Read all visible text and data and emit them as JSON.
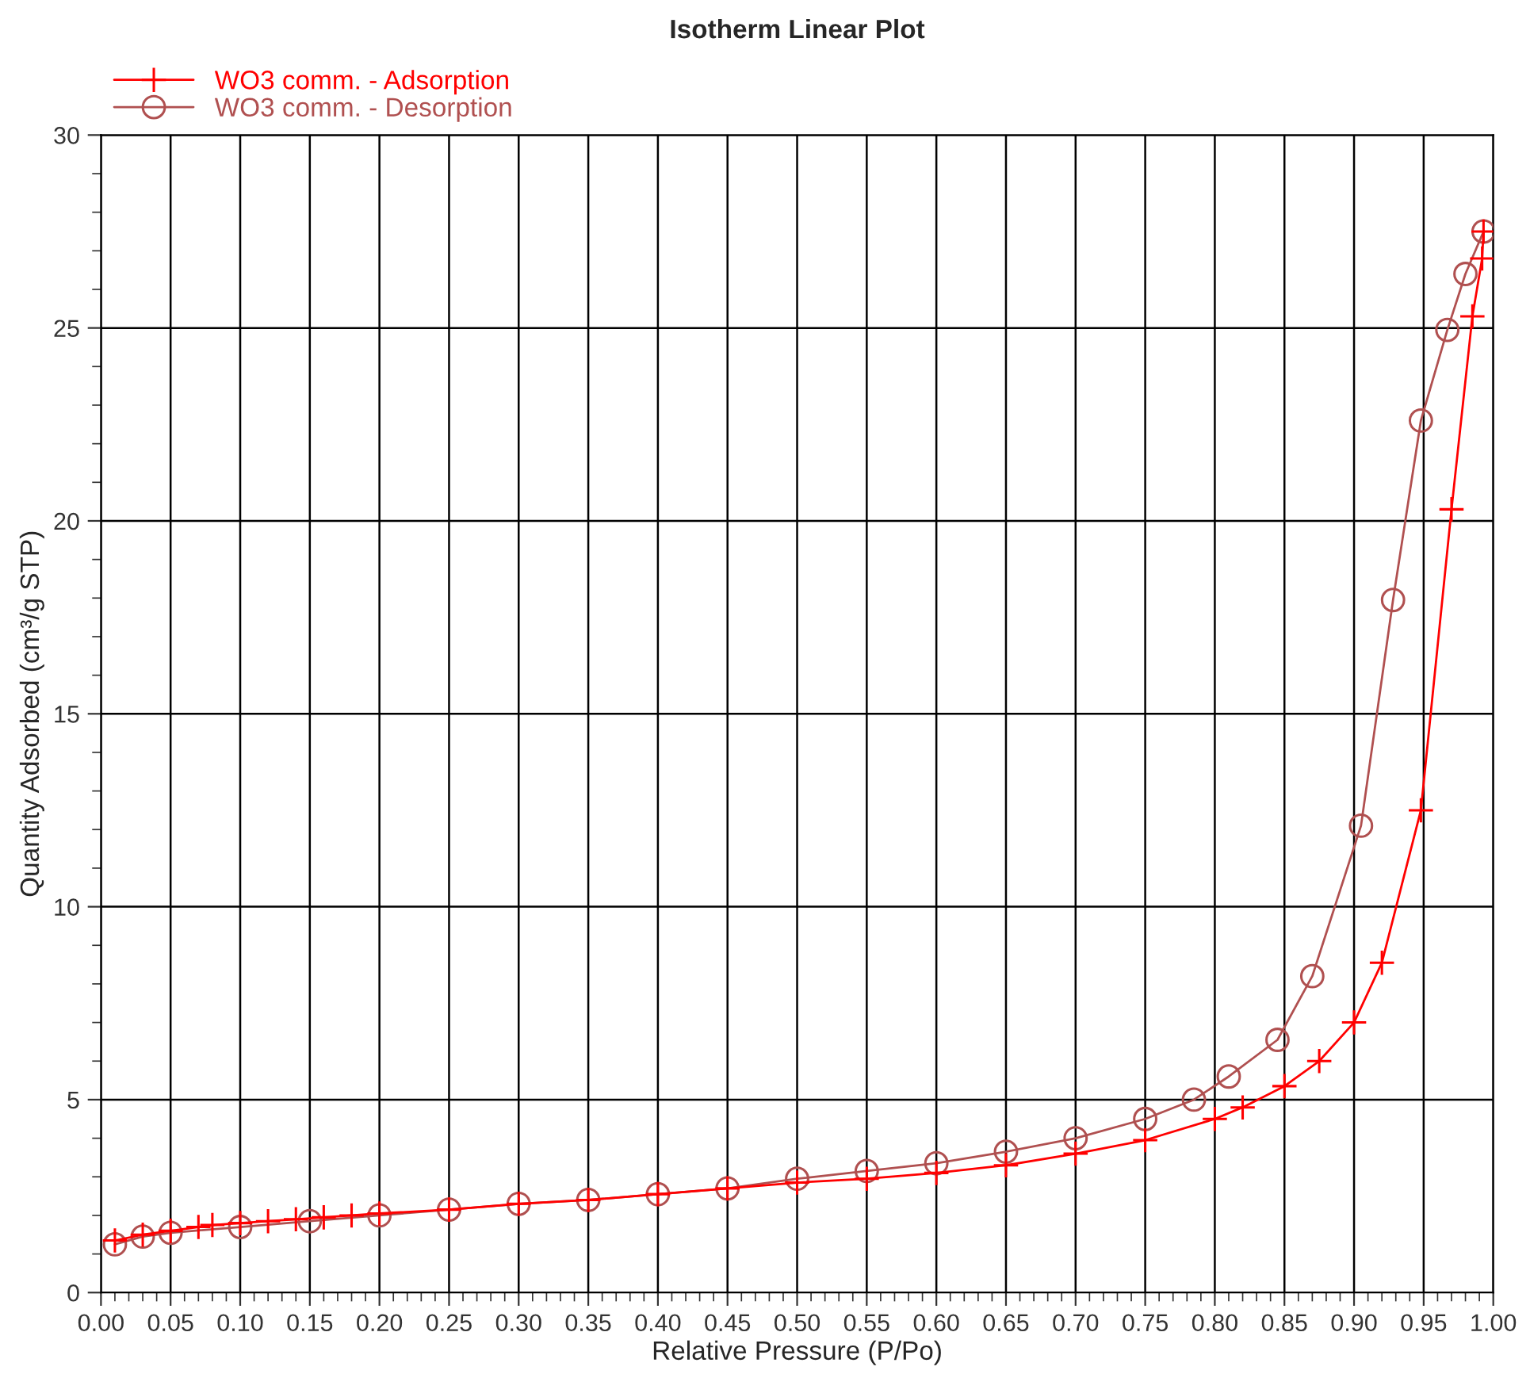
{
  "chart_data": {
    "type": "line",
    "title": "Isotherm Linear Plot",
    "xlabel": "Relative Pressure (P/Po)",
    "ylabel": "Quantity Adsorbed (cm³/g STP)",
    "xlim": [
      0,
      1
    ],
    "ylim": [
      0,
      30
    ],
    "xticks": [
      {
        "value": 0,
        "label": "0.00"
      },
      {
        "value": 0.05,
        "label": "0.05"
      },
      {
        "value": 0.1,
        "label": "0.10"
      },
      {
        "value": 0.15,
        "label": "0.15"
      },
      {
        "value": 0.2,
        "label": "0.20"
      },
      {
        "value": 0.25,
        "label": "0.25"
      },
      {
        "value": 0.3,
        "label": "0.30"
      },
      {
        "value": 0.35,
        "label": "0.35"
      },
      {
        "value": 0.4,
        "label": "0.40"
      },
      {
        "value": 0.45,
        "label": "0.45"
      },
      {
        "value": 0.5,
        "label": "0.50"
      },
      {
        "value": 0.55,
        "label": "0.55"
      },
      {
        "value": 0.6,
        "label": "0.60"
      },
      {
        "value": 0.65,
        "label": "0.65"
      },
      {
        "value": 0.7,
        "label": "0.70"
      },
      {
        "value": 0.75,
        "label": "0.75"
      },
      {
        "value": 0.8,
        "label": "0.80"
      },
      {
        "value": 0.85,
        "label": "0.85"
      },
      {
        "value": 0.9,
        "label": "0.90"
      },
      {
        "value": 0.95,
        "label": "0.95"
      },
      {
        "value": 1,
        "label": "1.00"
      }
    ],
    "yticks": [
      0,
      5,
      10,
      15,
      20,
      25,
      30
    ],
    "grid": true,
    "legend": "top left",
    "series": [
      {
        "name": "WO3 comm. - Adsorption",
        "color": "#ff0000",
        "marker": "cross",
        "x": [
          0.01,
          0.03,
          0.05,
          0.07,
          0.08,
          0.1,
          0.12,
          0.14,
          0.16,
          0.18,
          0.2,
          0.25,
          0.3,
          0.35,
          0.4,
          0.45,
          0.5,
          0.55,
          0.6,
          0.65,
          0.7,
          0.75,
          0.8,
          0.82,
          0.85,
          0.875,
          0.9,
          0.92,
          0.948,
          0.97,
          0.985,
          0.992,
          0.993
        ],
        "values": [
          1.35,
          1.5,
          1.6,
          1.7,
          1.75,
          1.8,
          1.85,
          1.9,
          1.95,
          2.0,
          2.05,
          2.15,
          2.3,
          2.4,
          2.55,
          2.7,
          2.85,
          2.95,
          3.1,
          3.3,
          3.6,
          3.95,
          4.5,
          4.8,
          5.35,
          6.0,
          7.0,
          8.55,
          12.5,
          20.3,
          25.3,
          26.8,
          27.5
        ]
      },
      {
        "name": "WO3 comm. - Desorption",
        "color": "#b05050",
        "marker": "circle",
        "x": [
          0.01,
          0.03,
          0.05,
          0.1,
          0.15,
          0.2,
          0.25,
          0.3,
          0.35,
          0.4,
          0.45,
          0.5,
          0.55,
          0.6,
          0.65,
          0.7,
          0.75,
          0.785,
          0.81,
          0.845,
          0.87,
          0.905,
          0.928,
          0.948,
          0.967,
          0.98,
          0.993
        ],
        "values": [
          1.25,
          1.45,
          1.55,
          1.7,
          1.85,
          2.0,
          2.15,
          2.3,
          2.4,
          2.55,
          2.7,
          2.95,
          3.15,
          3.35,
          3.65,
          4.0,
          4.5,
          5.0,
          5.6,
          6.55,
          8.2,
          12.1,
          17.95,
          22.6,
          24.95,
          26.4,
          27.5
        ]
      }
    ]
  }
}
